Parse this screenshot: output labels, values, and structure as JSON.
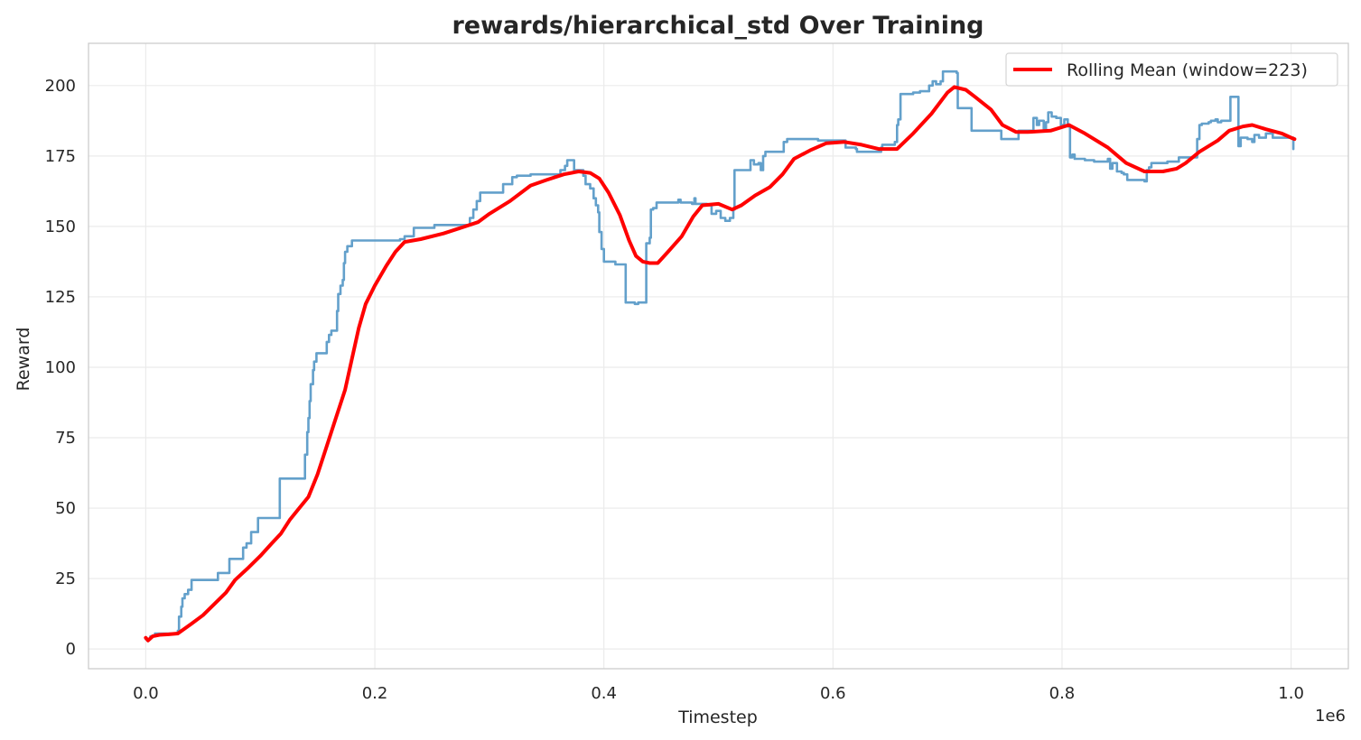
{
  "chart_data": {
    "type": "line",
    "title": "rewards/hierarchical_std Over Training",
    "xlabel": "Timestep",
    "ylabel": "Reward",
    "x_offset_text": "1e6",
    "xlim": [
      -0.05,
      1.05
    ],
    "ylim": [
      -7,
      215
    ],
    "x_ticks": [
      0.0,
      0.2,
      0.4,
      0.6,
      0.8,
      1.0
    ],
    "x_tick_labels": [
      "0.0",
      "0.2",
      "0.4",
      "0.6",
      "0.8",
      "1.0"
    ],
    "y_ticks": [
      0,
      25,
      50,
      75,
      100,
      125,
      150,
      175,
      200
    ],
    "y_tick_labels": [
      "0",
      "25",
      "50",
      "75",
      "100",
      "125",
      "150",
      "175",
      "200"
    ],
    "grid": true,
    "legend_position": "top-right",
    "series": [
      {
        "kind": "raw",
        "color": "#5b9bc8",
        "style": "step",
        "points": [
          [
            0.0,
            3.5
          ],
          [
            0.004,
            4.5
          ],
          [
            0.008,
            5.5
          ],
          [
            0.028,
            6.5
          ],
          [
            0.029,
            11.5
          ],
          [
            0.031,
            15.0
          ],
          [
            0.032,
            18.0
          ],
          [
            0.034,
            19.5
          ],
          [
            0.037,
            21.0
          ],
          [
            0.04,
            24.5
          ],
          [
            0.062,
            24.5
          ],
          [
            0.063,
            27.0
          ],
          [
            0.072,
            27.0
          ],
          [
            0.073,
            32.0
          ],
          [
            0.084,
            32.0
          ],
          [
            0.085,
            36.0
          ],
          [
            0.088,
            37.5
          ],
          [
            0.092,
            41.5
          ],
          [
            0.097,
            41.5
          ],
          [
            0.098,
            46.5
          ],
          [
            0.116,
            46.5
          ],
          [
            0.117,
            60.5
          ],
          [
            0.138,
            60.5
          ],
          [
            0.139,
            69.0
          ],
          [
            0.141,
            77.0
          ],
          [
            0.142,
            82.0
          ],
          [
            0.143,
            88.0
          ],
          [
            0.144,
            94.0
          ],
          [
            0.146,
            99.0
          ],
          [
            0.147,
            102.0
          ],
          [
            0.149,
            105.0
          ],
          [
            0.157,
            105.0
          ],
          [
            0.158,
            109.0
          ],
          [
            0.16,
            111.5
          ],
          [
            0.162,
            113.0
          ],
          [
            0.166,
            113.0
          ],
          [
            0.167,
            120.0
          ],
          [
            0.168,
            126.0
          ],
          [
            0.17,
            129.0
          ],
          [
            0.172,
            131.0
          ],
          [
            0.173,
            137.0
          ],
          [
            0.174,
            141.0
          ],
          [
            0.176,
            143.0
          ],
          [
            0.18,
            145.0
          ],
          [
            0.22,
            145.0
          ],
          [
            0.222,
            145.5
          ],
          [
            0.226,
            146.5
          ],
          [
            0.234,
            149.5
          ],
          [
            0.25,
            149.5
          ],
          [
            0.252,
            150.5
          ],
          [
            0.28,
            150.5
          ],
          [
            0.283,
            153.0
          ],
          [
            0.286,
            156.0
          ],
          [
            0.289,
            159.0
          ],
          [
            0.292,
            162.0
          ],
          [
            0.31,
            162.0
          ],
          [
            0.312,
            165.0
          ],
          [
            0.318,
            165.0
          ],
          [
            0.32,
            167.5
          ],
          [
            0.324,
            168.0
          ],
          [
            0.33,
            168.0
          ],
          [
            0.336,
            168.5
          ],
          [
            0.36,
            168.5
          ],
          [
            0.362,
            170.0
          ],
          [
            0.366,
            171.5
          ],
          [
            0.368,
            173.5
          ],
          [
            0.372,
            173.5
          ],
          [
            0.374,
            170.0
          ],
          [
            0.38,
            170.0
          ],
          [
            0.382,
            168.0
          ],
          [
            0.384,
            165.0
          ],
          [
            0.388,
            163.5
          ],
          [
            0.391,
            160.0
          ],
          [
            0.393,
            157.5
          ],
          [
            0.395,
            155.0
          ],
          [
            0.396,
            148.0
          ],
          [
            0.398,
            142.0
          ],
          [
            0.4,
            137.5
          ],
          [
            0.41,
            136.5
          ],
          [
            0.417,
            136.5
          ],
          [
            0.419,
            123.0
          ],
          [
            0.427,
            122.5
          ],
          [
            0.43,
            123.0
          ],
          [
            0.435,
            123.0
          ],
          [
            0.437,
            144.0
          ],
          [
            0.44,
            146.0
          ],
          [
            0.441,
            156.0
          ],
          [
            0.443,
            156.5
          ],
          [
            0.446,
            158.5
          ],
          [
            0.463,
            158.5
          ],
          [
            0.465,
            159.5
          ],
          [
            0.467,
            158.5
          ],
          [
            0.477,
            158.0
          ],
          [
            0.479,
            160.0
          ],
          [
            0.48,
            158.0
          ],
          [
            0.49,
            157.5
          ],
          [
            0.494,
            154.5
          ],
          [
            0.498,
            155.5
          ],
          [
            0.502,
            153.0
          ],
          [
            0.506,
            152.0
          ],
          [
            0.51,
            153.0
          ],
          [
            0.513,
            156.0
          ],
          [
            0.514,
            170.0
          ],
          [
            0.526,
            170.0
          ],
          [
            0.528,
            173.5
          ],
          [
            0.531,
            172.0
          ],
          [
            0.535,
            172.5
          ],
          [
            0.537,
            170.0
          ],
          [
            0.539,
            175.0
          ],
          [
            0.541,
            176.5
          ],
          [
            0.555,
            176.5
          ],
          [
            0.557,
            180.0
          ],
          [
            0.56,
            181.0
          ],
          [
            0.585,
            181.0
          ],
          [
            0.587,
            180.5
          ],
          [
            0.61,
            180.5
          ],
          [
            0.611,
            178.0
          ],
          [
            0.62,
            177.5
          ],
          [
            0.621,
            176.5
          ],
          [
            0.64,
            176.5
          ],
          [
            0.642,
            178.0
          ],
          [
            0.643,
            179.0
          ],
          [
            0.652,
            179.0
          ],
          [
            0.654,
            180.0
          ],
          [
            0.656,
            186.0
          ],
          [
            0.657,
            188.0
          ],
          [
            0.659,
            197.0
          ],
          [
            0.666,
            197.0
          ],
          [
            0.67,
            197.5
          ],
          [
            0.676,
            198.0
          ],
          [
            0.682,
            198.0
          ],
          [
            0.684,
            200.0
          ],
          [
            0.687,
            201.5
          ],
          [
            0.69,
            200.5
          ],
          [
            0.694,
            201.5
          ],
          [
            0.696,
            205.0
          ],
          [
            0.706,
            205.0
          ],
          [
            0.708,
            204.5
          ],
          [
            0.709,
            192.0
          ],
          [
            0.72,
            192.0
          ],
          [
            0.721,
            184.0
          ],
          [
            0.745,
            184.0
          ],
          [
            0.747,
            181.0
          ],
          [
            0.76,
            181.0
          ],
          [
            0.762,
            184.0
          ],
          [
            0.774,
            184.0
          ],
          [
            0.775,
            188.5
          ],
          [
            0.778,
            186.0
          ],
          [
            0.78,
            187.5
          ],
          [
            0.784,
            184.5
          ],
          [
            0.786,
            187.0
          ],
          [
            0.788,
            190.5
          ],
          [
            0.791,
            189.0
          ],
          [
            0.795,
            188.5
          ],
          [
            0.799,
            186.0
          ],
          [
            0.802,
            188.0
          ],
          [
            0.805,
            185.5
          ],
          [
            0.807,
            174.5
          ],
          [
            0.809,
            175.5
          ],
          [
            0.811,
            174.0
          ],
          [
            0.82,
            173.5
          ],
          [
            0.826,
            173.5
          ],
          [
            0.828,
            173.0
          ],
          [
            0.84,
            174.0
          ],
          [
            0.842,
            170.5
          ],
          [
            0.844,
            172.5
          ],
          [
            0.848,
            169.5
          ],
          [
            0.852,
            169.0
          ],
          [
            0.854,
            168.5
          ],
          [
            0.857,
            166.5
          ],
          [
            0.872,
            166.0
          ],
          [
            0.874,
            170.0
          ],
          [
            0.876,
            171.0
          ],
          [
            0.878,
            172.5
          ],
          [
            0.89,
            172.5
          ],
          [
            0.892,
            173.0
          ],
          [
            0.9,
            173.0
          ],
          [
            0.902,
            174.5
          ],
          [
            0.916,
            174.5
          ],
          [
            0.918,
            181.0
          ],
          [
            0.92,
            186.0
          ],
          [
            0.922,
            186.5
          ],
          [
            0.928,
            187.0
          ],
          [
            0.93,
            187.5
          ],
          [
            0.934,
            188.0
          ],
          [
            0.936,
            187.0
          ],
          [
            0.939,
            187.5
          ],
          [
            0.945,
            187.5
          ],
          [
            0.947,
            196.0
          ],
          [
            0.953,
            196.0
          ],
          [
            0.954,
            178.5
          ],
          [
            0.956,
            181.5
          ],
          [
            0.962,
            181.0
          ],
          [
            0.966,
            180.0
          ],
          [
            0.968,
            182.5
          ],
          [
            0.972,
            181.5
          ],
          [
            0.978,
            183.0
          ],
          [
            0.982,
            183.0
          ],
          [
            0.984,
            181.5
          ],
          [
            1.0,
            181.5
          ],
          [
            1.002,
            177.5
          ]
        ]
      },
      {
        "kind": "rolling",
        "name": "Rolling Mean (window=223)",
        "color": "#ff0000",
        "points": [
          [
            0.0,
            4.0
          ],
          [
            0.002,
            3.0
          ],
          [
            0.006,
            4.5
          ],
          [
            0.012,
            5.0
          ],
          [
            0.02,
            5.2
          ],
          [
            0.028,
            5.5
          ],
          [
            0.04,
            9.0
          ],
          [
            0.05,
            12.0
          ],
          [
            0.06,
            16.0
          ],
          [
            0.07,
            20.0
          ],
          [
            0.078,
            24.5
          ],
          [
            0.09,
            29.0
          ],
          [
            0.1,
            33.0
          ],
          [
            0.11,
            37.5
          ],
          [
            0.118,
            41.0
          ],
          [
            0.126,
            46.0
          ],
          [
            0.134,
            50.0
          ],
          [
            0.142,
            54.0
          ],
          [
            0.15,
            62.0
          ],
          [
            0.158,
            72.0
          ],
          [
            0.166,
            82.0
          ],
          [
            0.174,
            92.0
          ],
          [
            0.18,
            103.0
          ],
          [
            0.186,
            114.0
          ],
          [
            0.192,
            122.5
          ],
          [
            0.2,
            129.0
          ],
          [
            0.21,
            136.0
          ],
          [
            0.218,
            141.0
          ],
          [
            0.226,
            144.5
          ],
          [
            0.24,
            145.5
          ],
          [
            0.26,
            147.5
          ],
          [
            0.275,
            149.5
          ],
          [
            0.29,
            151.5
          ],
          [
            0.3,
            154.5
          ],
          [
            0.318,
            159.0
          ],
          [
            0.336,
            164.5
          ],
          [
            0.35,
            166.5
          ],
          [
            0.365,
            168.5
          ],
          [
            0.378,
            169.5
          ],
          [
            0.388,
            169.0
          ],
          [
            0.396,
            167.0
          ],
          [
            0.404,
            162.0
          ],
          [
            0.414,
            154.0
          ],
          [
            0.422,
            145.0
          ],
          [
            0.428,
            139.5
          ],
          [
            0.434,
            137.5
          ],
          [
            0.44,
            137.0
          ],
          [
            0.447,
            137.0
          ],
          [
            0.456,
            141.0
          ],
          [
            0.468,
            146.5
          ],
          [
            0.478,
            153.5
          ],
          [
            0.486,
            157.5
          ],
          [
            0.5,
            158.0
          ],
          [
            0.512,
            156.0
          ],
          [
            0.52,
            157.5
          ],
          [
            0.532,
            161.0
          ],
          [
            0.545,
            164.0
          ],
          [
            0.556,
            168.5
          ],
          [
            0.566,
            174.0
          ],
          [
            0.58,
            177.0
          ],
          [
            0.594,
            179.5
          ],
          [
            0.61,
            180.0
          ],
          [
            0.625,
            179.0
          ],
          [
            0.64,
            177.5
          ],
          [
            0.656,
            177.5
          ],
          [
            0.67,
            183.0
          ],
          [
            0.686,
            190.0
          ],
          [
            0.7,
            197.5
          ],
          [
            0.706,
            199.5
          ],
          [
            0.716,
            198.5
          ],
          [
            0.724,
            196.0
          ],
          [
            0.738,
            191.5
          ],
          [
            0.748,
            186.0
          ],
          [
            0.76,
            183.5
          ],
          [
            0.77,
            183.5
          ],
          [
            0.79,
            184.0
          ],
          [
            0.806,
            186.0
          ],
          [
            0.82,
            183.0
          ],
          [
            0.84,
            178.0
          ],
          [
            0.856,
            172.5
          ],
          [
            0.872,
            169.5
          ],
          [
            0.888,
            169.5
          ],
          [
            0.9,
            170.5
          ],
          [
            0.908,
            172.5
          ],
          [
            0.92,
            176.5
          ],
          [
            0.936,
            180.5
          ],
          [
            0.946,
            184.0
          ],
          [
            0.958,
            185.5
          ],
          [
            0.966,
            186.0
          ],
          [
            0.978,
            184.5
          ],
          [
            0.992,
            183.0
          ],
          [
            1.0,
            181.5
          ],
          [
            1.003,
            181.0
          ]
        ]
      }
    ]
  }
}
